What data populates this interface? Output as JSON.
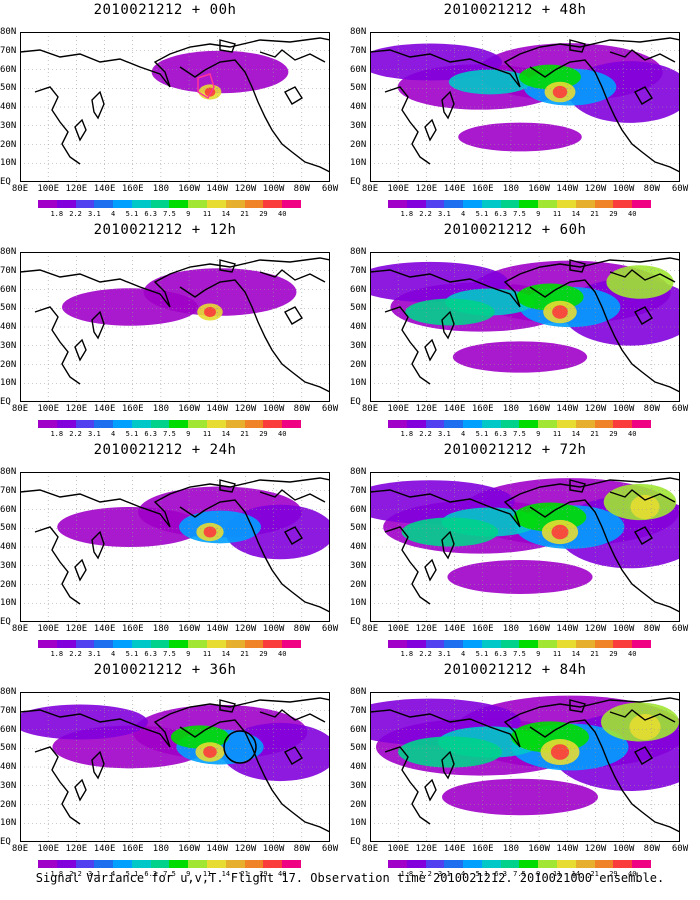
{
  "panels": [
    {
      "title": "2010021212 + 00h",
      "intensity": 0.1
    },
    {
      "title": "2010021212 + 48h",
      "intensity": 0.55
    },
    {
      "title": "2010021212 + 12h",
      "intensity": 0.25
    },
    {
      "title": "2010021212 + 60h",
      "intensity": 0.7
    },
    {
      "title": "2010021212 + 24h",
      "intensity": 0.35
    },
    {
      "title": "2010021212 + 72h",
      "intensity": 0.85
    },
    {
      "title": "2010021212 + 36h",
      "intensity": 0.45
    },
    {
      "title": "2010021212 + 84h",
      "intensity": 1.0
    }
  ],
  "x_ticks": [
    "80E",
    "100E",
    "120E",
    "140E",
    "160E",
    "180",
    "160W",
    "140W",
    "120W",
    "100W",
    "80W",
    "60W"
  ],
  "y_ticks": [
    "80N",
    "70N",
    "60N",
    "50N",
    "40N",
    "30N",
    "20N",
    "10N",
    "EQ"
  ],
  "colorbar": {
    "labels": [
      "1.8",
      "2.2",
      "3.1",
      "4",
      "5.1",
      "6.3",
      "7.5",
      "9",
      "11",
      "14",
      "21",
      "29",
      "40"
    ],
    "colors": [
      "#a000c8",
      "#8200dc",
      "#5040f0",
      "#1e6ef0",
      "#00a0ff",
      "#00c8c8",
      "#00d28c",
      "#00dc00",
      "#a0e632",
      "#e6dc32",
      "#e6af2d",
      "#f08228",
      "#fa3c3c",
      "#f00082"
    ]
  },
  "footer": "Signal Variance for u,v,T. Flight 17. Observation time 2010021212. 2010021000 ensemble."
}
